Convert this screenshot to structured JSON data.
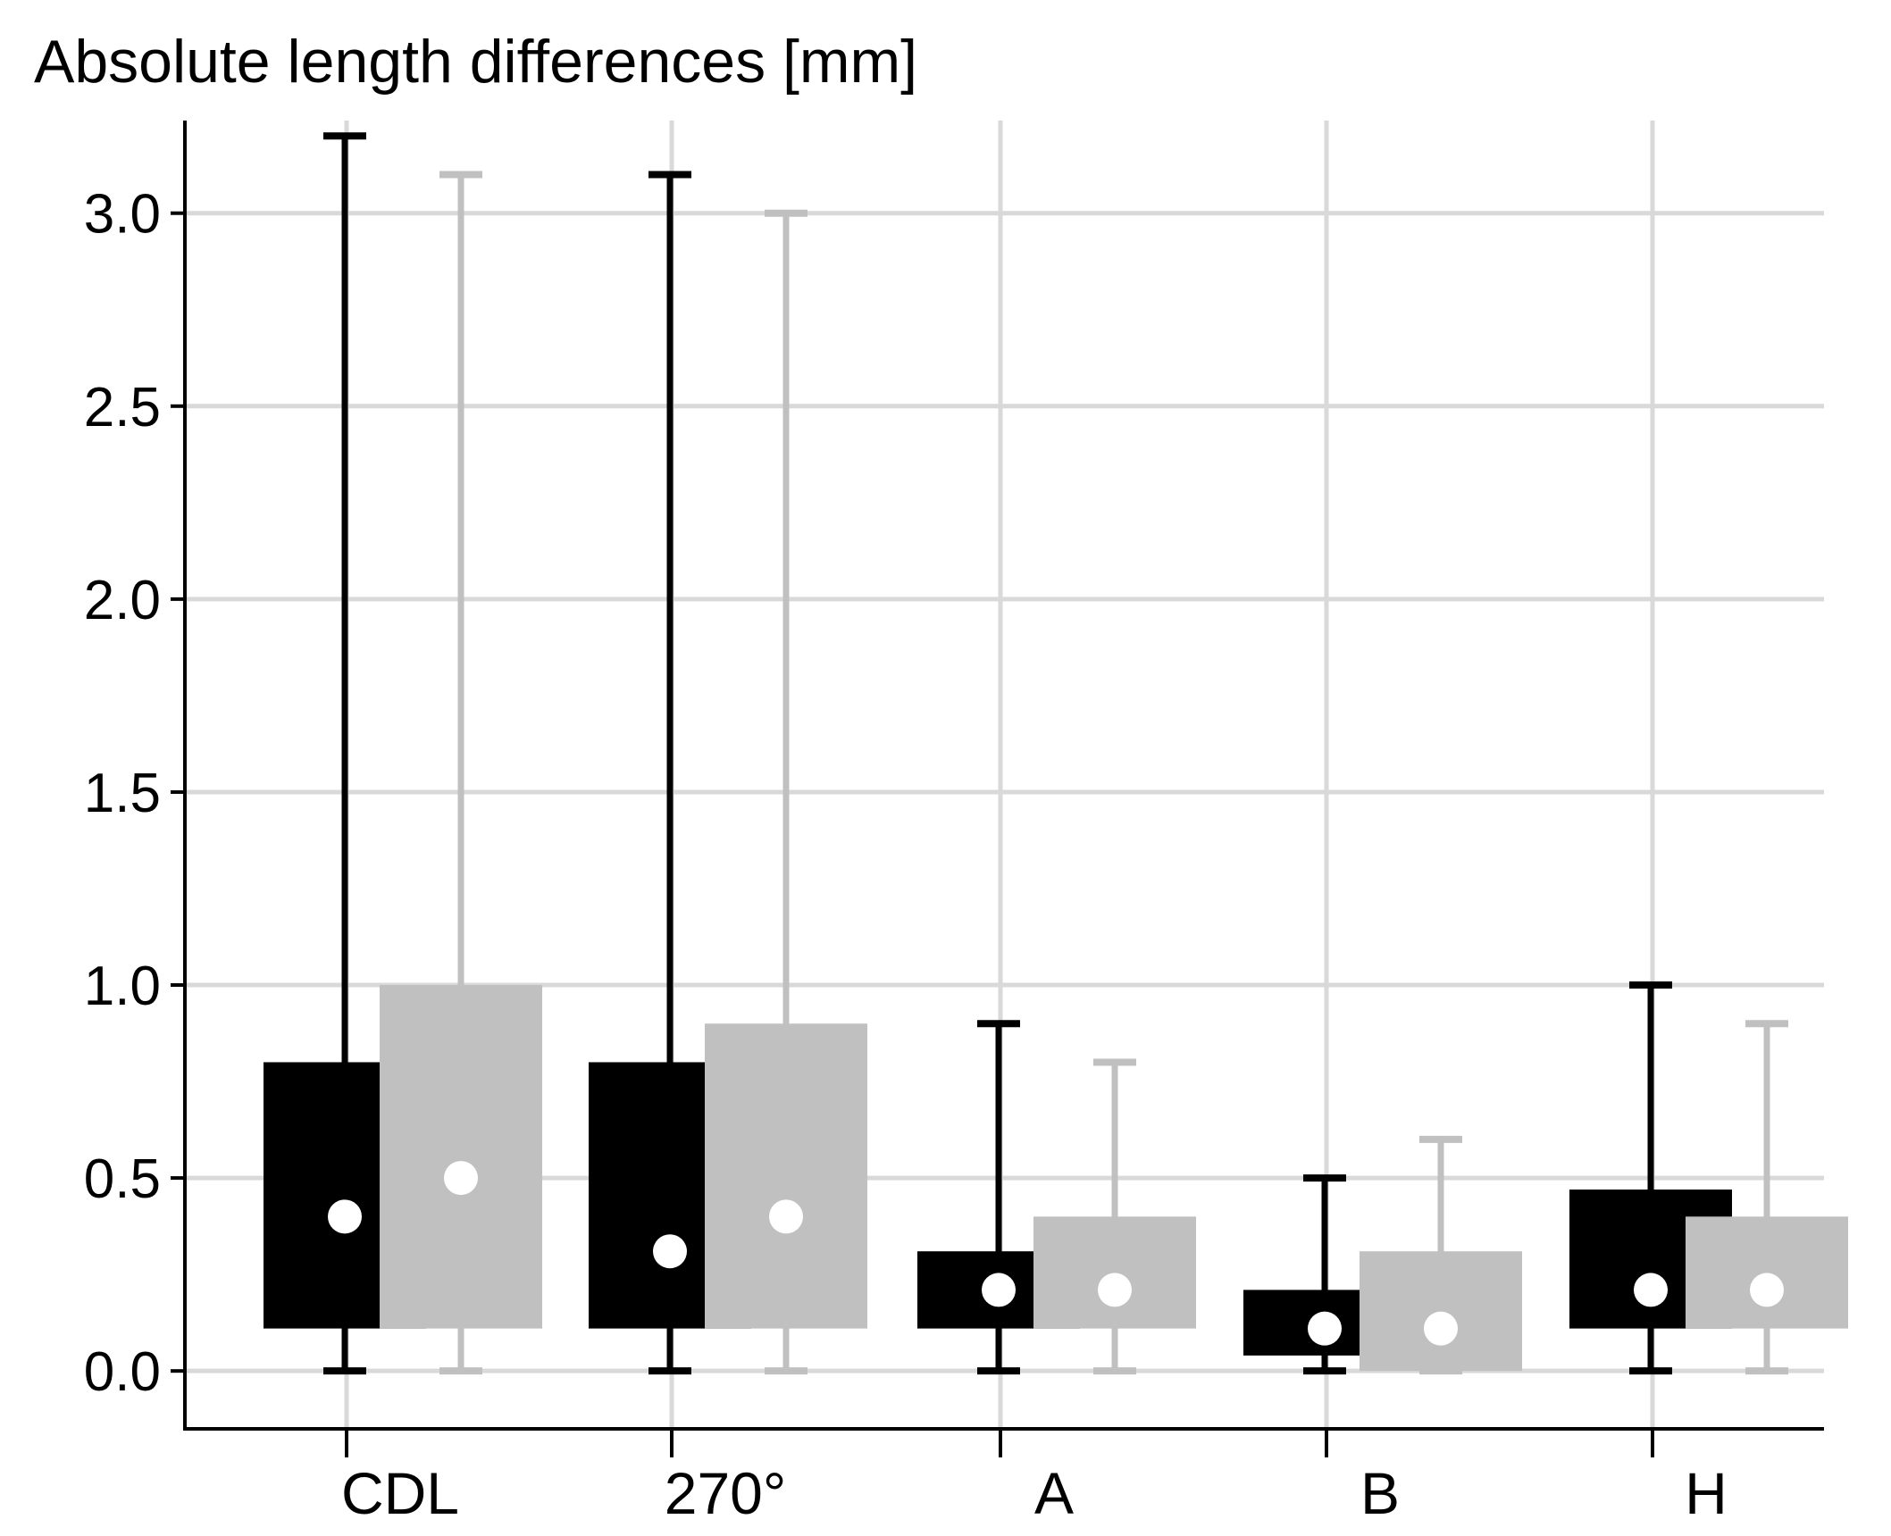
{
  "chart_data": {
    "type": "box",
    "title": "Absolute length differences [mm]",
    "xlabel": "",
    "ylabel": "",
    "categories": [
      "CDL",
      "270°",
      "A",
      "B",
      "H"
    ],
    "ylim": [
      -0.15,
      3.24
    ],
    "yticks": [
      "0.0",
      "0.5",
      "1.0",
      "1.5",
      "2.0",
      "2.5",
      "3.0"
    ],
    "grid": true,
    "legend": "none",
    "series": [
      {
        "color": "#000000",
        "median_color": "#ffffff",
        "boxes": [
          {
            "min": 0.0,
            "q1": 0.11,
            "median": 0.4,
            "q3": 0.8,
            "max": 3.2
          },
          {
            "min": 0.0,
            "q1": 0.11,
            "median": 0.31,
            "q3": 0.8,
            "max": 3.1
          },
          {
            "min": 0.0,
            "q1": 0.11,
            "median": 0.21,
            "q3": 0.31,
            "max": 0.9
          },
          {
            "min": 0.0,
            "q1": 0.04,
            "median": 0.11,
            "q3": 0.21,
            "max": 0.5
          },
          {
            "min": 0.0,
            "q1": 0.11,
            "median": 0.21,
            "q3": 0.47,
            "max": 1.0
          }
        ]
      },
      {
        "color": "#c0c0c0",
        "median_color": "#ffffff",
        "boxes": [
          {
            "min": 0.0,
            "q1": 0.11,
            "median": 0.5,
            "q3": 1.0,
            "max": 3.1
          },
          {
            "min": 0.0,
            "q1": 0.11,
            "median": 0.4,
            "q3": 0.9,
            "max": 3.0
          },
          {
            "min": 0.0,
            "q1": 0.11,
            "median": 0.21,
            "q3": 0.4,
            "max": 0.8
          },
          {
            "min": 0.0,
            "q1": 0.0,
            "median": 0.11,
            "q3": 0.31,
            "max": 0.6
          },
          {
            "min": 0.0,
            "q1": 0.11,
            "median": 0.21,
            "q3": 0.4,
            "max": 0.9
          }
        ]
      }
    ],
    "colors": {
      "grid": "#d9d9d9",
      "axis": "#000000"
    }
  }
}
